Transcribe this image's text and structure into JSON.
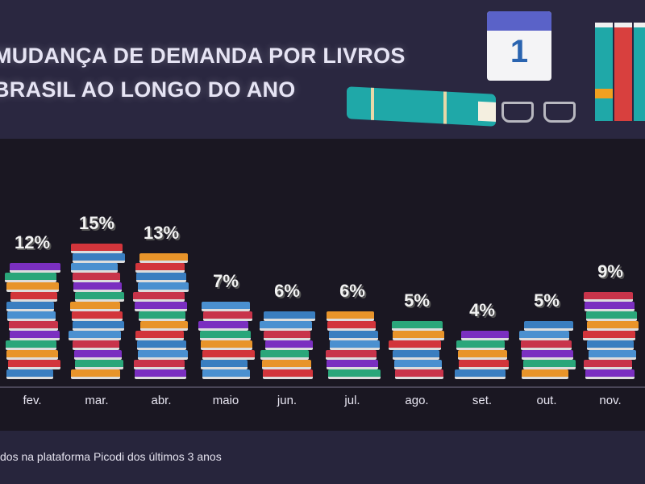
{
  "title": {
    "line1": "MUDANÇA DE DEMANDA POR LIVROS",
    "line2": "BRASIL AO LONGO DO ANO"
  },
  "calendar": {
    "day": "1"
  },
  "footer": {
    "note": "dos na plataforma Picodi dos últimos 3 anos"
  },
  "chart_data": {
    "type": "bar",
    "title": "MUDANÇA DE DEMANDA POR LIVROS BRASIL AO LONGO DO ANO",
    "categories": [
      "fev.",
      "mar.",
      "abr.",
      "maio",
      "jun.",
      "jul.",
      "ago.",
      "set.",
      "out.",
      "nov."
    ],
    "values": [
      12,
      15,
      13,
      7,
      6,
      6,
      5,
      4,
      5,
      9
    ],
    "labels": [
      "12%",
      "15%",
      "13%",
      "7%",
      "6%",
      "6%",
      "5%",
      "4%",
      "5%",
      "9%"
    ],
    "unit": "%",
    "xlabel": "",
    "ylabel": "",
    "ylim": [
      0,
      16
    ],
    "grid": false,
    "book_colors": [
      "#3a7ec0",
      "#d2353b",
      "#e8942a",
      "#2aa67a",
      "#7a2fc0",
      "#c8344a",
      "#4a90d0"
    ]
  }
}
